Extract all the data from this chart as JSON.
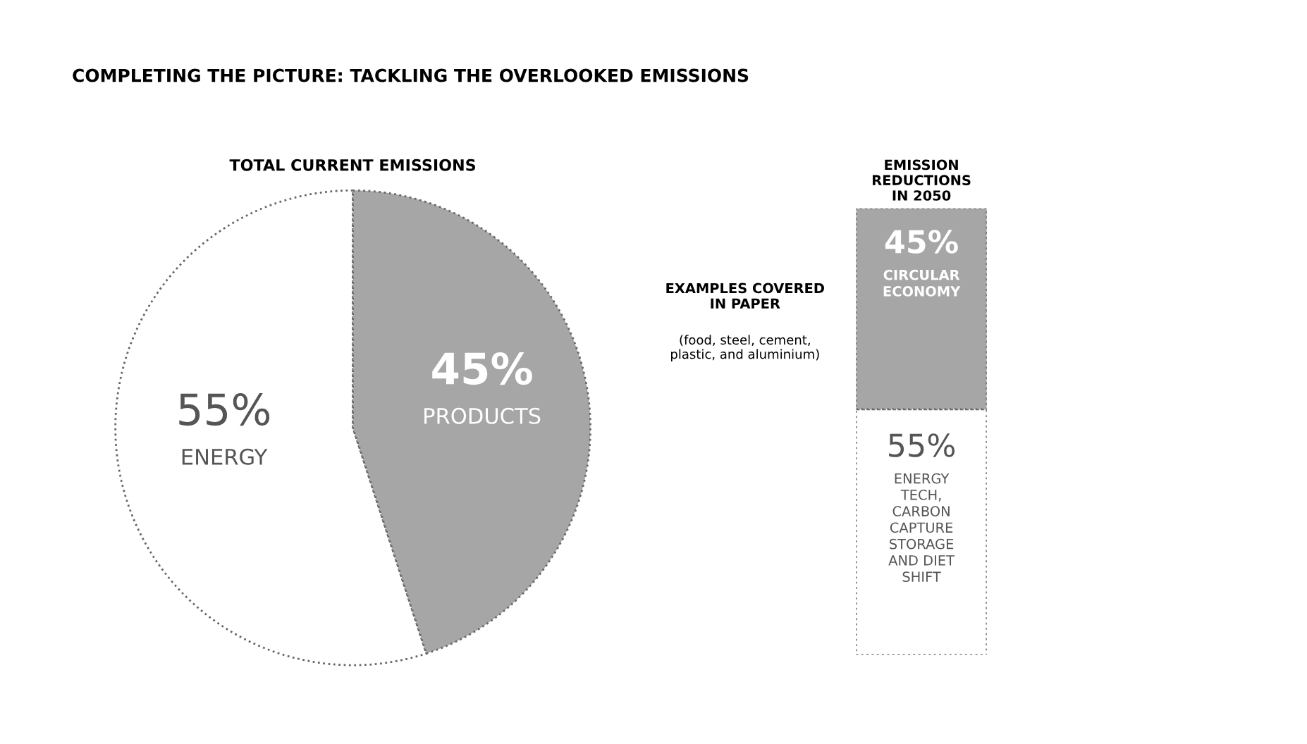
{
  "chart_data": [
    {
      "type": "pie",
      "title": "TOTAL CURRENT EMISSIONS",
      "categories": [
        "ENERGY",
        "PRODUCTS"
      ],
      "values": [
        55,
        45
      ],
      "value_labels": [
        "55%",
        "45%"
      ],
      "colors": [
        "#ffffff",
        "#a6a6a6"
      ],
      "annotations": [
        "COMPLETING THE PICTURE: TACKLING THE OVERLOOKED EMISSIONS"
      ]
    },
    {
      "type": "bar",
      "stacked": true,
      "title": "EMISSION REDUCTIONS IN 2050",
      "categories": [
        null
      ],
      "series": [
        {
          "name": "ENERGY TECH, CARBON CAPTURE STORAGE AND DIET SHIFT",
          "color": "#ffffff",
          "values": [
            55
          ],
          "value_labels": [
            "55%"
          ]
        },
        {
          "name": "CIRCULAR ECONOMY",
          "color": "#a6a6a6",
          "values": [
            45
          ],
          "value_labels": [
            "45%"
          ]
        }
      ],
      "annotations": [
        "EXAMPLES COVERED IN PAPER",
        "(food, steel, cement, plastic, and aluminium)"
      ]
    }
  ]
}
